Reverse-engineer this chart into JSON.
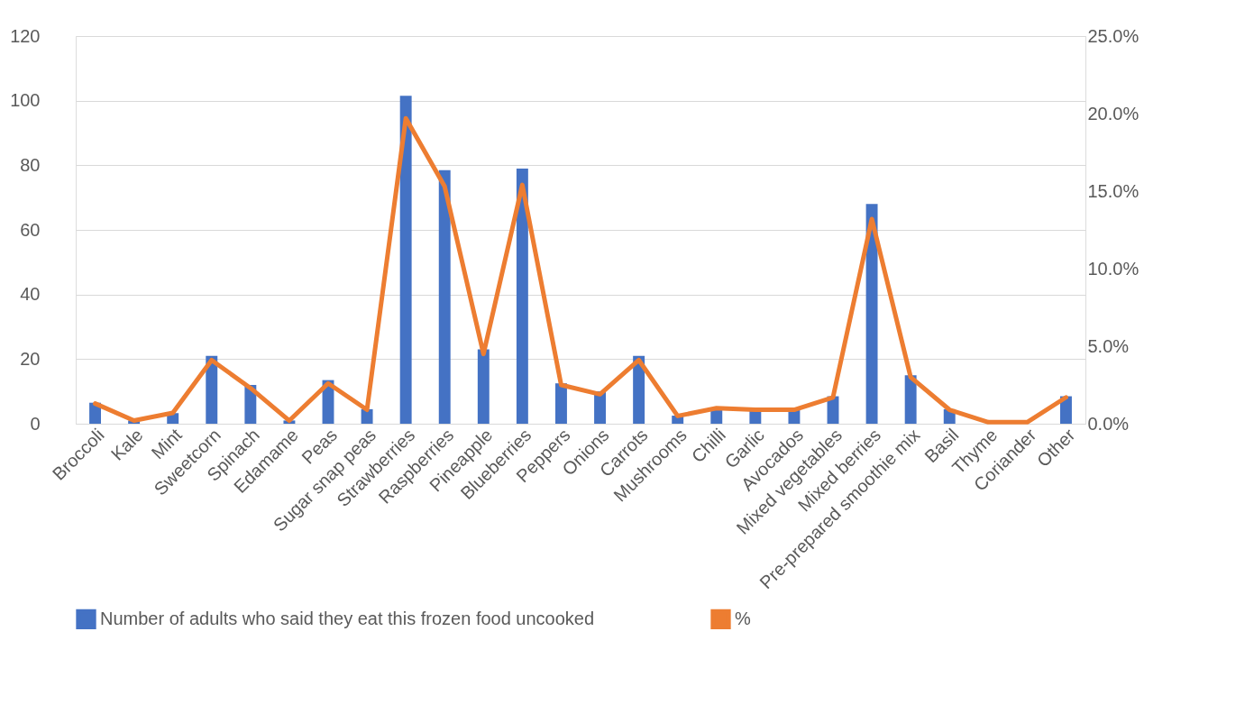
{
  "chart_data": {
    "type": "bar",
    "categories": [
      "Broccoli",
      "Kale",
      "Mint",
      "Sweetcorn",
      "Spinach",
      "Edamame",
      "Peas",
      "Sugar snap peas",
      "Strawberries",
      "Raspberries",
      "Pineapple",
      "Blueberries",
      "Peppers",
      "Onions",
      "Carrots",
      "Mushrooms",
      "Chilli",
      "Garlic",
      "Avocados",
      "Mixed vegetables",
      "Mixed berries",
      "Pre-prepared smoothie mix",
      "Basil",
      "Thyme",
      "Coriander",
      "Other"
    ],
    "series": [
      {
        "name": "Number of adults who said they eat this frozen food uncooked",
        "color": "#4472c4",
        "values": [
          6.5,
          1,
          3.3,
          21,
          12,
          1,
          13.5,
          4.5,
          101.5,
          78.5,
          23,
          79,
          12.5,
          10,
          21,
          2.5,
          4.5,
          4.5,
          4.5,
          8.5,
          68,
          15,
          4.5,
          null,
          null,
          8.5
        ]
      },
      {
        "name": "%",
        "color": "#ed7d31",
        "type": "line",
        "axis": "y2",
        "values": [
          1.3,
          0.2,
          0.7,
          4.1,
          2.3,
          0.2,
          2.6,
          0.9,
          19.7,
          15.3,
          4.5,
          15.4,
          2.5,
          1.9,
          4.1,
          0.5,
          1.0,
          0.9,
          0.9,
          1.7,
          13.2,
          3.0,
          0.9,
          0.1,
          0.1,
          1.7
        ]
      }
    ],
    "ylim": [
      0,
      120
    ],
    "yticks": [
      0,
      20,
      40,
      60,
      80,
      100,
      120
    ],
    "y2lim": [
      0,
      25
    ],
    "y2ticks": [
      {
        "value": 0,
        "label": "0.0%"
      },
      {
        "value": 5,
        "label": "5.0%"
      },
      {
        "value": 10,
        "label": "10.0%"
      },
      {
        "value": 15,
        "label": "15.0%"
      },
      {
        "value": 20,
        "label": "20.0%"
      },
      {
        "value": 25,
        "label": "25.0%"
      }
    ],
    "grid": "y",
    "legend": "bottom",
    "marker": "none",
    "line_style": "solid"
  }
}
